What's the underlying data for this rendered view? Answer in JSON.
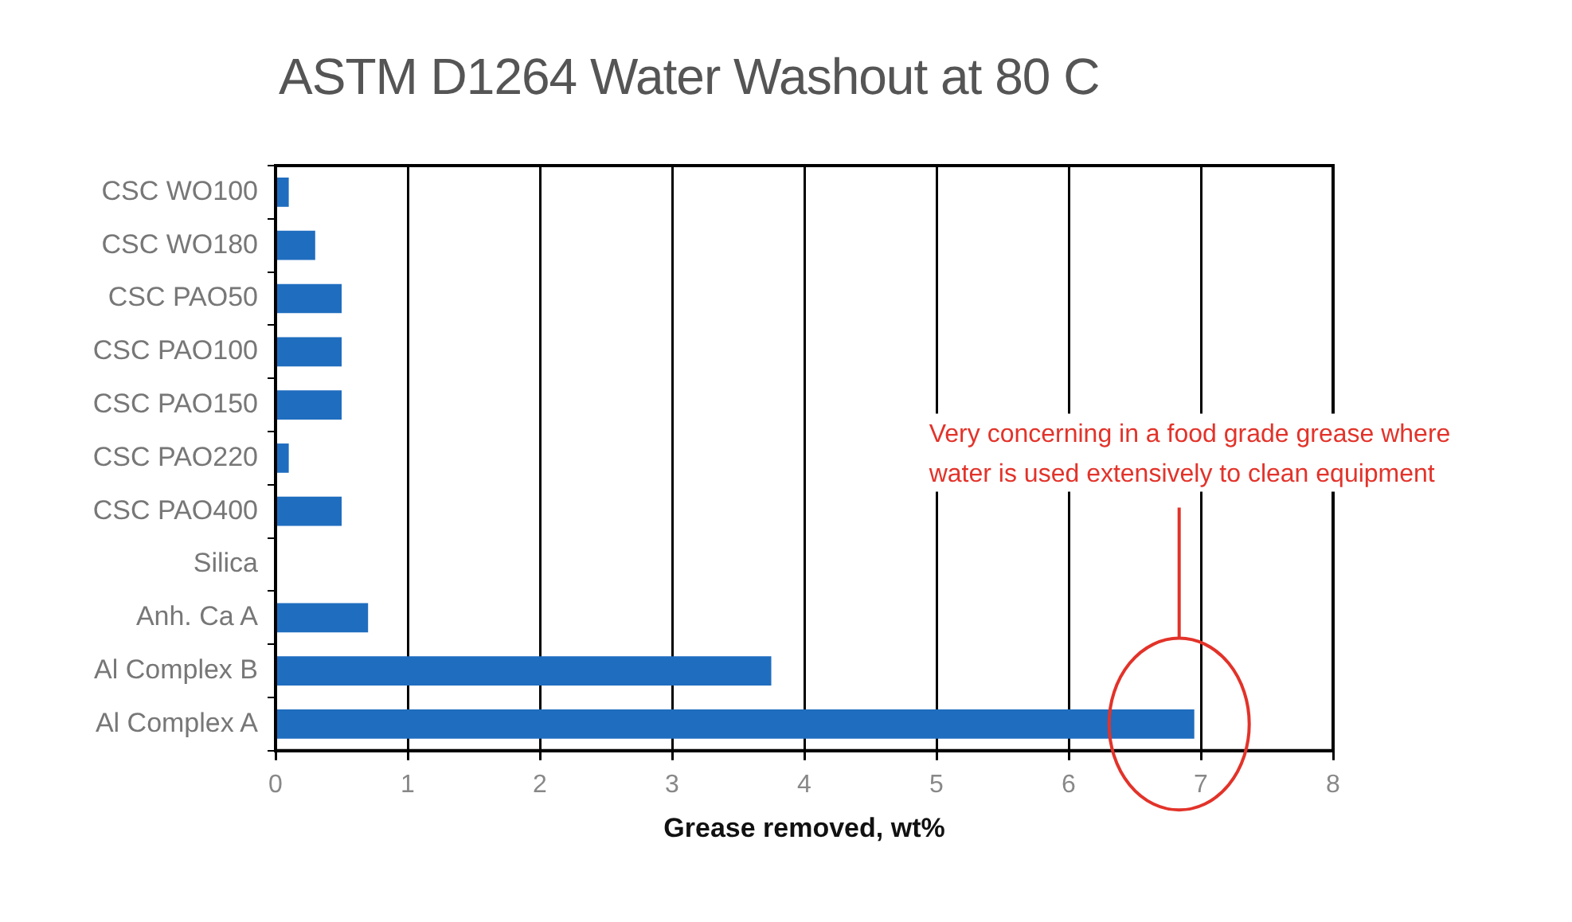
{
  "chart_data": {
    "type": "bar",
    "orientation": "horizontal",
    "title": "ASTM D1264 Water Washout at 80 C",
    "xlabel": "Grease removed, wt%",
    "categories": [
      "CSC WO100",
      "CSC WO180",
      "CSC PAO50",
      "CSC PAO100",
      "CSC PAO150",
      "CSC PAO220",
      "CSC PAO400",
      "Silica",
      "Anh. Ca A",
      "Al Complex B",
      "Al Complex A"
    ],
    "values": [
      0.1,
      0.3,
      0.5,
      0.5,
      0.5,
      0.1,
      0.5,
      0,
      0.7,
      3.75,
      6.95
    ],
    "color": "#1f6dbf",
    "xlim": [
      0,
      8
    ],
    "xticks": [
      0,
      1,
      2,
      3,
      4,
      5,
      6,
      7,
      8
    ],
    "grid": "x",
    "legend": false,
    "annotations": [
      "Very concerning in a food grade grease where water is used extensively to clean equipment"
    ]
  }
}
